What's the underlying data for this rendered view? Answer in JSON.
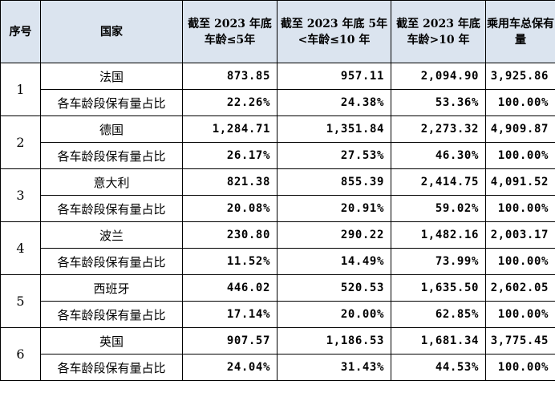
{
  "headers": {
    "seq": "序号",
    "country": "国家",
    "le5": "截至 2023 年底车龄≤5年",
    "b5_10": "截至 2023 年底 5年<车龄≤10 年",
    "gt10": "截至 2023 年底车龄>10 年",
    "total": "乘用车总保有量"
  },
  "share_label": "各车龄段保有量占比",
  "rows": [
    {
      "seq": "1",
      "country": "法国",
      "values": [
        "873.85",
        "957.11",
        "2,094.90",
        "3,925.86"
      ],
      "shares": [
        "22.26%",
        "24.38%",
        "53.36%",
        "100.00%"
      ]
    },
    {
      "seq": "2",
      "country": "德国",
      "values": [
        "1,284.71",
        "1,351.84",
        "2,273.32",
        "4,909.87"
      ],
      "shares": [
        "26.17%",
        "27.53%",
        "46.30%",
        "100.00%"
      ]
    },
    {
      "seq": "3",
      "country": "意大利",
      "values": [
        "821.38",
        "855.39",
        "2,414.75",
        "4,091.52"
      ],
      "shares": [
        "20.08%",
        "20.91%",
        "59.02%",
        "100.00%"
      ]
    },
    {
      "seq": "4",
      "country": "波兰",
      "values": [
        "230.80",
        "290.22",
        "1,482.16",
        "2,003.17"
      ],
      "shares": [
        "11.52%",
        "14.49%",
        "73.99%",
        "100.00%"
      ]
    },
    {
      "seq": "5",
      "country": "西班牙",
      "values": [
        "446.02",
        "520.53",
        "1,635.50",
        "2,602.05"
      ],
      "shares": [
        "17.14%",
        "20.00%",
        "62.85%",
        "100.00%"
      ]
    },
    {
      "seq": "6",
      "country": "英国",
      "values": [
        "907.57",
        "1,186.53",
        "1,681.34",
        "3,775.45"
      ],
      "shares": [
        "24.04%",
        "31.43%",
        "44.53%",
        "100.00%"
      ]
    }
  ]
}
